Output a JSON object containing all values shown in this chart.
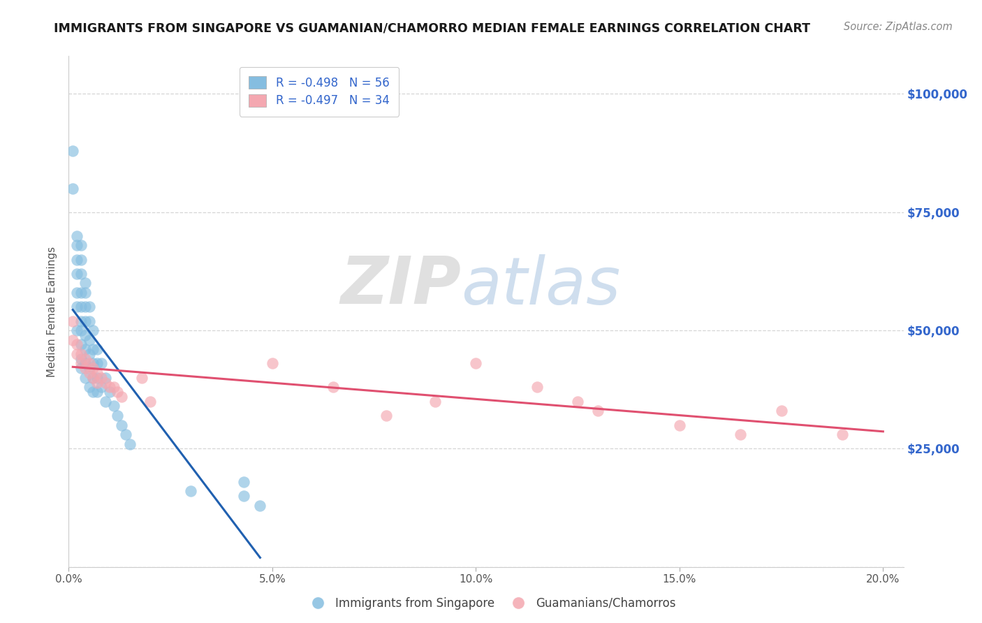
{
  "title": "IMMIGRANTS FROM SINGAPORE VS GUAMANIAN/CHAMORRO MEDIAN FEMALE EARNINGS CORRELATION CHART",
  "source": "Source: ZipAtlas.com",
  "ylabel": "Median Female Earnings",
  "xlim": [
    0.0,
    0.205
  ],
  "ylim": [
    0,
    108000
  ],
  "yticks": [
    0,
    25000,
    50000,
    75000,
    100000
  ],
  "ytick_labels": [
    "",
    "$25,000",
    "$50,000",
    "$75,000",
    "$100,000"
  ],
  "xticks": [
    0.0,
    0.05,
    0.1,
    0.15,
    0.2
  ],
  "xtick_labels": [
    "0.0%",
    "5.0%",
    "10.0%",
    "15.0%",
    "20.0%"
  ],
  "legend1_label": "R = -0.498   N = 56",
  "legend2_label": "R = -0.497   N = 34",
  "series1_color": "#85bde0",
  "series2_color": "#f4a7b0",
  "line1_color": "#2060b0",
  "line2_color": "#e05070",
  "background_color": "#ffffff",
  "title_color": "#1a1a1a",
  "source_color": "#888888",
  "series1_name": "Immigrants from Singapore",
  "series2_name": "Guamanians/Chamorros",
  "series1_x": [
    0.001,
    0.001,
    0.002,
    0.002,
    0.002,
    0.002,
    0.002,
    0.002,
    0.002,
    0.003,
    0.003,
    0.003,
    0.003,
    0.003,
    0.003,
    0.003,
    0.003,
    0.003,
    0.003,
    0.004,
    0.004,
    0.004,
    0.004,
    0.004,
    0.004,
    0.004,
    0.004,
    0.005,
    0.005,
    0.005,
    0.005,
    0.005,
    0.005,
    0.006,
    0.006,
    0.006,
    0.006,
    0.006,
    0.007,
    0.007,
    0.007,
    0.007,
    0.008,
    0.008,
    0.009,
    0.009,
    0.01,
    0.011,
    0.012,
    0.013,
    0.014,
    0.015,
    0.03,
    0.043,
    0.043,
    0.047
  ],
  "series1_y": [
    88000,
    80000,
    70000,
    68000,
    65000,
    62000,
    58000,
    55000,
    50000,
    68000,
    65000,
    62000,
    58000,
    55000,
    52000,
    50000,
    47000,
    44000,
    42000,
    60000,
    58000,
    55000,
    52000,
    49000,
    46000,
    43000,
    40000,
    55000,
    52000,
    48000,
    45000,
    42000,
    38000,
    50000,
    46000,
    43000,
    40000,
    37000,
    46000,
    43000,
    40000,
    37000,
    43000,
    38000,
    40000,
    35000,
    37000,
    34000,
    32000,
    30000,
    28000,
    26000,
    16000,
    18000,
    15000,
    13000
  ],
  "series2_x": [
    0.001,
    0.001,
    0.002,
    0.002,
    0.003,
    0.003,
    0.004,
    0.004,
    0.005,
    0.005,
    0.006,
    0.006,
    0.007,
    0.007,
    0.008,
    0.009,
    0.01,
    0.011,
    0.012,
    0.013,
    0.018,
    0.02,
    0.05,
    0.065,
    0.078,
    0.09,
    0.1,
    0.115,
    0.125,
    0.13,
    0.15,
    0.165,
    0.175,
    0.19
  ],
  "series2_y": [
    52000,
    48000,
    47000,
    45000,
    45000,
    43000,
    44000,
    42000,
    43000,
    41000,
    42000,
    40000,
    41000,
    39000,
    40000,
    39000,
    38000,
    38000,
    37000,
    36000,
    40000,
    35000,
    43000,
    38000,
    32000,
    35000,
    43000,
    38000,
    35000,
    33000,
    30000,
    28000,
    33000,
    28000
  ],
  "line1_x_start": 0.001,
  "line1_x_end": 0.047,
  "line2_x_start": 0.001,
  "line2_x_end": 0.2
}
